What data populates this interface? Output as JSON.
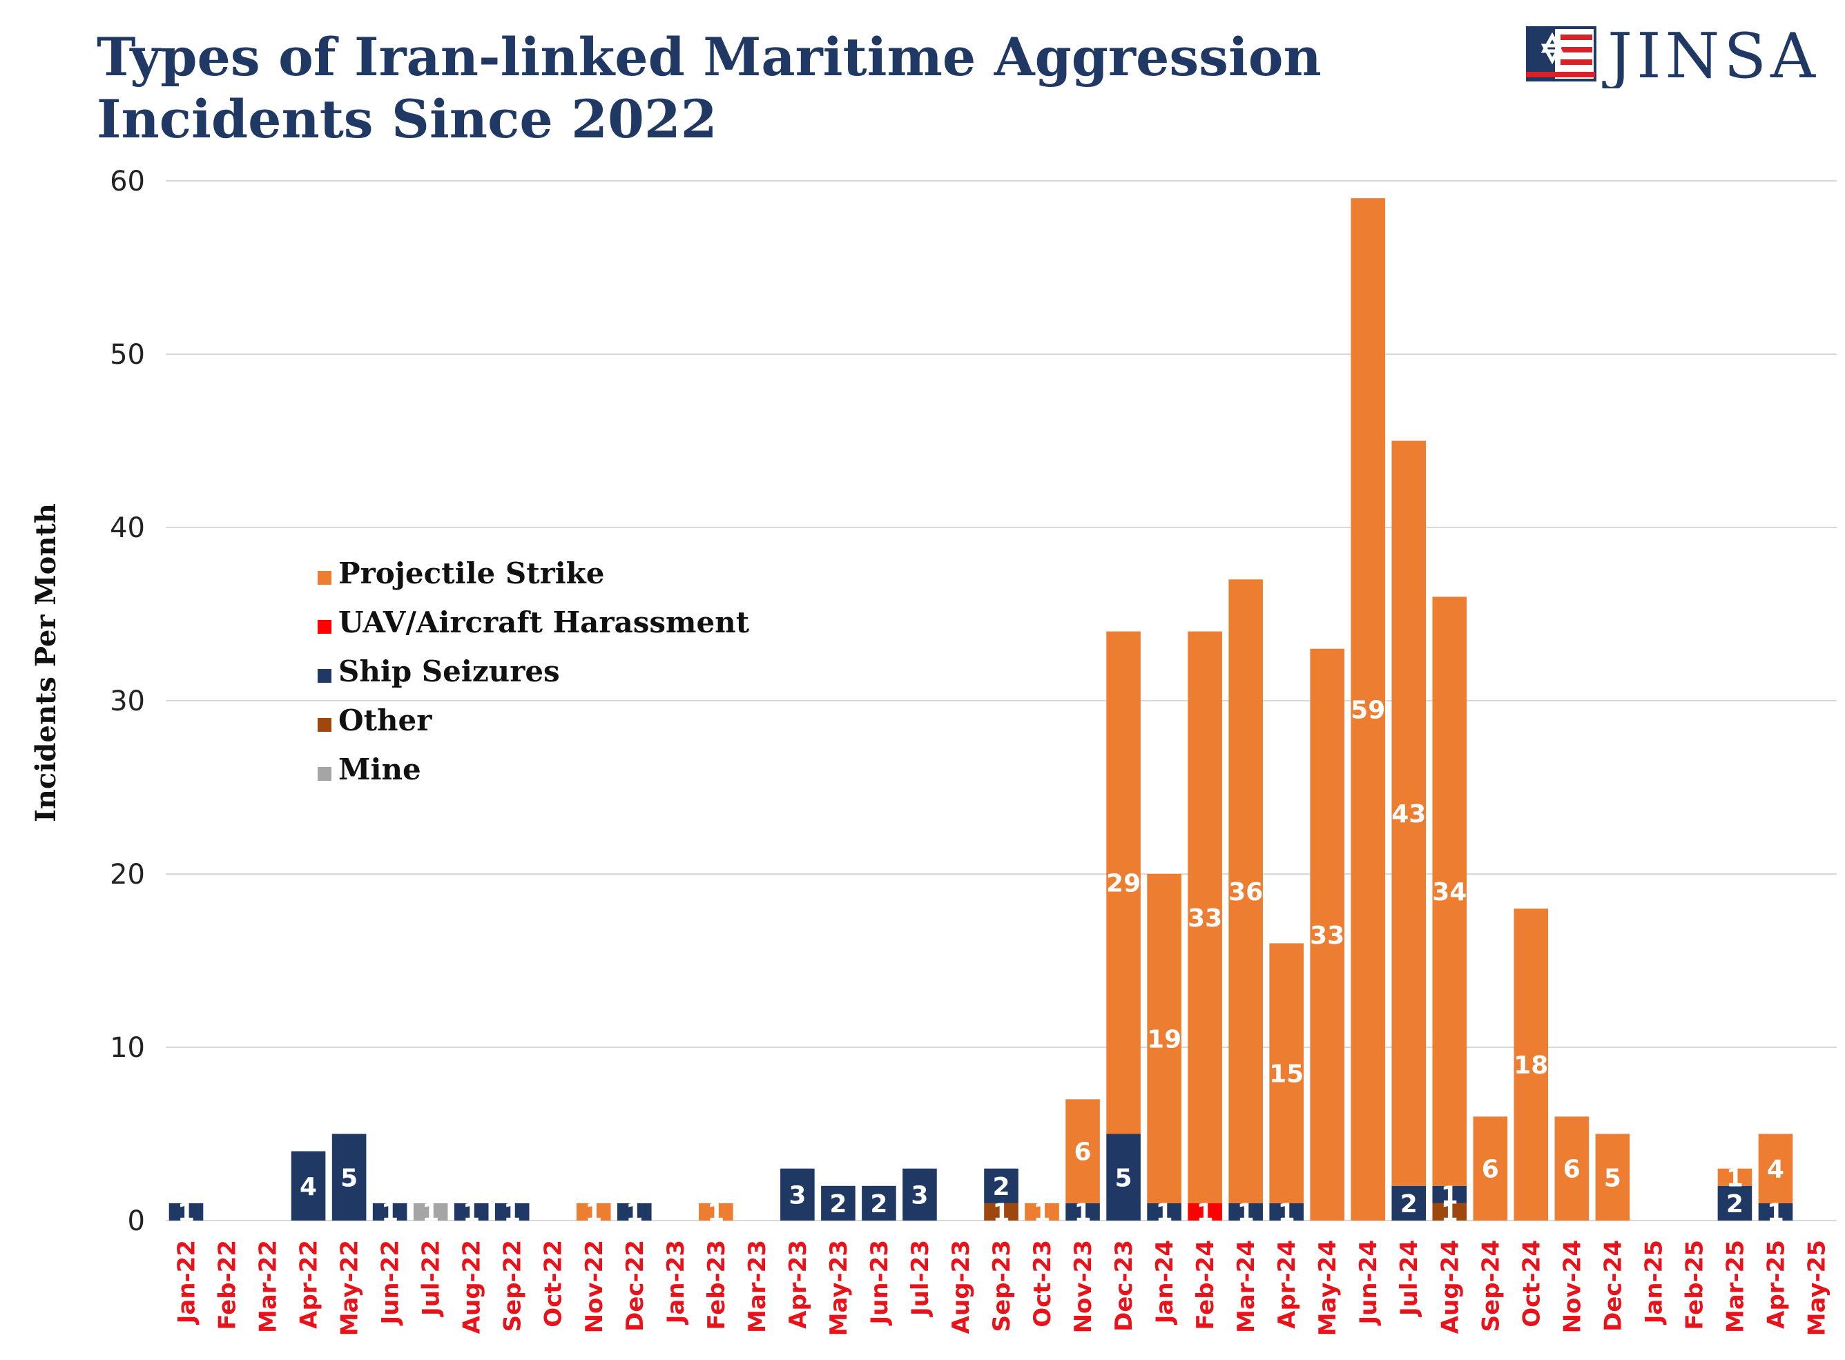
{
  "title_lines": [
    "Types of Iran-linked Maritime Aggression",
    "Incidents Since 2022"
  ],
  "logo": {
    "text": "JINSA",
    "icon": "star-flag-icon"
  },
  "chart_data": {
    "type": "bar",
    "stacked": true,
    "ylabel": "Incidents Per Month",
    "xlabel": "",
    "ylim": [
      0,
      60
    ],
    "yticks": [
      0,
      10,
      20,
      30,
      40,
      50,
      60
    ],
    "grid": true,
    "legend_position": "left-middle",
    "categories": [
      "Jan-22",
      "Feb-22",
      "Mar-22",
      "Apr-22",
      "May-22",
      "Jun-22",
      "Jul-22",
      "Aug-22",
      "Sep-22",
      "Oct-22",
      "Nov-22",
      "Dec-22",
      "Jan-23",
      "Feb-23",
      "Mar-23",
      "Apr-23",
      "May-23",
      "Jun-23",
      "Jul-23",
      "Aug-23",
      "Sep-23",
      "Oct-23",
      "Nov-23",
      "Dec-23",
      "Jan-24",
      "Feb-24",
      "Mar-24",
      "Apr-24",
      "May-24",
      "Jun-24",
      "Jul-24",
      "Aug-24",
      "Sep-24",
      "Oct-24",
      "Nov-24",
      "Dec-24",
      "Jan-25",
      "Feb-25",
      "Mar-25",
      "Apr-25",
      "May-25"
    ],
    "series": [
      {
        "name": "Mine",
        "color": "#a5a5a5",
        "values": [
          0,
          0,
          0,
          0,
          0,
          0,
          1,
          0,
          0,
          0,
          0,
          0,
          0,
          0,
          0,
          0,
          0,
          0,
          0,
          0,
          0,
          0,
          0,
          0,
          0,
          0,
          0,
          0,
          0,
          0,
          0,
          0,
          0,
          0,
          0,
          0,
          0,
          0,
          0,
          0,
          0
        ]
      },
      {
        "name": "Other",
        "color": "#9e480e",
        "values": [
          0,
          0,
          0,
          0,
          0,
          0,
          0,
          0,
          0,
          0,
          0,
          0,
          0,
          0,
          0,
          0,
          0,
          0,
          0,
          0,
          1,
          0,
          0,
          0,
          0,
          0,
          0,
          0,
          0,
          0,
          0,
          1,
          0,
          0,
          0,
          0,
          0,
          0,
          0,
          0,
          0
        ]
      },
      {
        "name": "Ship Seizures",
        "color": "#203864",
        "values": [
          1,
          0,
          0,
          4,
          5,
          1,
          0,
          1,
          1,
          0,
          0,
          1,
          0,
          0,
          0,
          3,
          2,
          2,
          3,
          0,
          2,
          0,
          1,
          5,
          1,
          0,
          1,
          1,
          0,
          0,
          2,
          1,
          0,
          0,
          0,
          0,
          0,
          0,
          2,
          1,
          0
        ]
      },
      {
        "name": "UAV/Aircraft Harassment",
        "color": "#ff0000",
        "values": [
          0,
          0,
          0,
          0,
          0,
          0,
          0,
          0,
          0,
          0,
          0,
          0,
          0,
          0,
          0,
          0,
          0,
          0,
          0,
          0,
          0,
          0,
          0,
          0,
          0,
          1,
          0,
          0,
          0,
          0,
          0,
          0,
          0,
          0,
          0,
          0,
          0,
          0,
          0,
          0,
          0
        ]
      },
      {
        "name": "Projectile Strike",
        "color": "#ed7d31",
        "values": [
          0,
          0,
          0,
          0,
          0,
          0,
          0,
          0,
          0,
          0,
          1,
          0,
          0,
          1,
          0,
          0,
          0,
          0,
          0,
          0,
          0,
          1,
          6,
          29,
          19,
          33,
          36,
          15,
          33,
          59,
          43,
          34,
          6,
          18,
          6,
          5,
          0,
          0,
          1,
          4,
          0
        ]
      }
    ],
    "legend_order": [
      "Projectile Strike",
      "UAV/Aircraft Harassment",
      "Ship Seizures",
      "Other",
      "Mine"
    ]
  }
}
